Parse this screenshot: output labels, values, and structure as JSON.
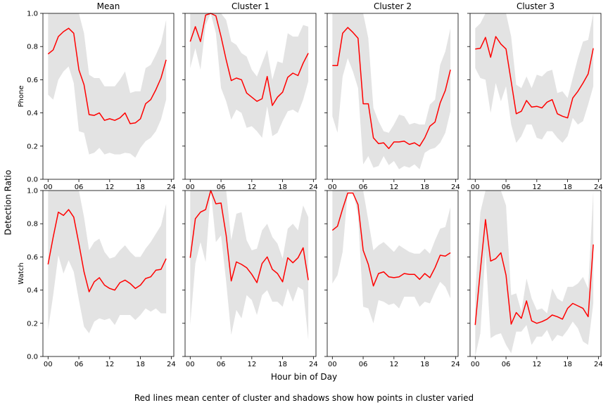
{
  "figure": {
    "supylabel": "Detection Ratio",
    "supxlabel": "Hour bin of Day",
    "caption": "Red lines mean center of cluster and shadows show how points in cluster varied"
  },
  "colors": {
    "line": "#ff0000",
    "band": "#e3e3e3",
    "axis": "#000000"
  },
  "chart_data": [
    {
      "type": "line",
      "title": "Mean",
      "ylabel": "Phone",
      "ylim": [
        0,
        1
      ],
      "xlim": [
        -1,
        24.5
      ],
      "x_ticks": [
        "00",
        "06",
        "12",
        "18",
        "24"
      ],
      "y_ticks": [
        "0.0",
        "0.2",
        "0.4",
        "0.6",
        "0.8",
        "1.0"
      ],
      "series": [
        {
          "x": [
            0,
            1,
            2,
            3,
            4,
            5,
            6,
            7,
            8,
            9,
            10,
            11,
            12,
            13,
            14,
            15,
            16,
            17,
            18,
            19,
            20,
            21,
            22,
            23
          ],
          "values": [
            0.755,
            0.78,
            0.86,
            0.89,
            0.91,
            0.88,
            0.66,
            0.57,
            0.39,
            0.385,
            0.4,
            0.355,
            0.365,
            0.355,
            0.37,
            0.4,
            0.335,
            0.34,
            0.365,
            0.455,
            0.48,
            0.54,
            0.61,
            0.72
          ],
          "lower": [
            0.51,
            0.48,
            0.6,
            0.65,
            0.68,
            0.58,
            0.29,
            0.28,
            0.15,
            0.16,
            0.19,
            0.15,
            0.16,
            0.15,
            0.15,
            0.16,
            0.155,
            0.13,
            0.19,
            0.23,
            0.25,
            0.29,
            0.36,
            0.48
          ],
          "upper": [
            1.0,
            1.0,
            1.0,
            1.0,
            1.0,
            1.0,
            1.0,
            0.88,
            0.63,
            0.61,
            0.61,
            0.56,
            0.56,
            0.56,
            0.6,
            0.65,
            0.52,
            0.53,
            0.53,
            0.67,
            0.69,
            0.75,
            0.82,
            0.96
          ]
        }
      ]
    },
    {
      "type": "line",
      "title": "Cluster 1",
      "ylabel": "",
      "ylim": [
        0,
        1
      ],
      "xlim": [
        -1,
        24.5
      ],
      "x_ticks": [
        "00",
        "06",
        "12",
        "18",
        "24"
      ],
      "y_ticks": [
        "0.0",
        "0.2",
        "0.4",
        "0.6",
        "0.8",
        "1.0"
      ],
      "series": [
        {
          "x": [
            0,
            1,
            2,
            3,
            4,
            5,
            6,
            7,
            8,
            9,
            10,
            11,
            12,
            13,
            14,
            15,
            16,
            17,
            18,
            19,
            20,
            21,
            22,
            23
          ],
          "values": [
            0.83,
            0.92,
            0.83,
            0.99,
            1.0,
            0.985,
            0.86,
            0.72,
            0.595,
            0.61,
            0.6,
            0.52,
            0.495,
            0.47,
            0.485,
            0.62,
            0.445,
            0.495,
            0.525,
            0.615,
            0.64,
            0.625,
            0.7,
            0.76
          ],
          "lower": [
            0.67,
            0.79,
            0.66,
            0.93,
            1.0,
            0.88,
            0.55,
            0.47,
            0.36,
            0.42,
            0.4,
            0.31,
            0.32,
            0.29,
            0.25,
            0.44,
            0.26,
            0.28,
            0.35,
            0.41,
            0.42,
            0.4,
            0.48,
            0.59
          ],
          "upper": [
            1.0,
            1.0,
            1.0,
            1.0,
            1.0,
            1.0,
            1.0,
            0.96,
            0.83,
            0.81,
            0.76,
            0.74,
            0.66,
            0.62,
            0.7,
            0.78,
            0.6,
            0.71,
            0.7,
            0.88,
            0.86,
            0.86,
            0.93,
            0.92
          ]
        }
      ]
    },
    {
      "type": "line",
      "title": "Cluster 2",
      "ylabel": "",
      "ylim": [
        0,
        1
      ],
      "xlim": [
        -1,
        24.5
      ],
      "x_ticks": [
        "00",
        "06",
        "12",
        "18",
        "24"
      ],
      "y_ticks": [
        "0.0",
        "0.2",
        "0.4",
        "0.6",
        "0.8",
        "1.0"
      ],
      "series": [
        {
          "x": [
            0,
            1,
            2,
            3,
            4,
            5,
            6,
            7,
            8,
            9,
            10,
            11,
            12,
            13,
            14,
            15,
            16,
            17,
            18,
            19,
            20,
            21,
            22,
            23
          ],
          "values": [
            0.685,
            0.685,
            0.88,
            0.915,
            0.885,
            0.85,
            0.455,
            0.455,
            0.25,
            0.215,
            0.22,
            0.185,
            0.225,
            0.225,
            0.23,
            0.21,
            0.22,
            0.2,
            0.25,
            0.32,
            0.345,
            0.46,
            0.535,
            0.66
          ],
          "lower": [
            0.38,
            0.28,
            0.62,
            0.73,
            0.65,
            0.55,
            0.09,
            0.14,
            0.07,
            0.08,
            0.14,
            0.085,
            0.11,
            0.06,
            0.08,
            0.07,
            0.09,
            0.06,
            0.16,
            0.18,
            0.19,
            0.22,
            0.28,
            0.41
          ],
          "upper": [
            1.0,
            1.0,
            1.0,
            1.0,
            1.0,
            1.0,
            1.0,
            0.85,
            0.43,
            0.35,
            0.29,
            0.28,
            0.33,
            0.39,
            0.38,
            0.33,
            0.34,
            0.33,
            0.33,
            0.45,
            0.48,
            0.69,
            0.77,
            0.91
          ]
        }
      ]
    },
    {
      "type": "line",
      "title": "Cluster 3",
      "ylabel": "",
      "ylim": [
        0,
        1
      ],
      "xlim": [
        -1,
        24.5
      ],
      "x_ticks": [
        "00",
        "06",
        "12",
        "18",
        "24"
      ],
      "y_ticks": [
        "0.0",
        "0.2",
        "0.4",
        "0.6",
        "0.8",
        "1.0"
      ],
      "series": [
        {
          "x": [
            0,
            1,
            2,
            3,
            4,
            5,
            6,
            7,
            8,
            9,
            10,
            11,
            12,
            13,
            14,
            15,
            16,
            17,
            18,
            19,
            20,
            21,
            22,
            23
          ],
          "values": [
            0.785,
            0.79,
            0.855,
            0.735,
            0.86,
            0.815,
            0.785,
            0.59,
            0.395,
            0.41,
            0.475,
            0.435,
            0.44,
            0.43,
            0.465,
            0.48,
            0.395,
            0.38,
            0.37,
            0.49,
            0.53,
            0.58,
            0.635,
            0.79
          ],
          "lower": [
            0.67,
            0.61,
            0.6,
            0.4,
            0.58,
            0.47,
            0.56,
            0.33,
            0.22,
            0.26,
            0.33,
            0.33,
            0.25,
            0.24,
            0.29,
            0.29,
            0.25,
            0.22,
            0.26,
            0.37,
            0.33,
            0.35,
            0.45,
            0.56
          ],
          "upper": [
            0.91,
            0.94,
            1.0,
            1.0,
            1.0,
            1.0,
            1.0,
            0.86,
            0.57,
            0.55,
            0.62,
            0.55,
            0.63,
            0.62,
            0.65,
            0.66,
            0.52,
            0.53,
            0.49,
            0.61,
            0.73,
            0.83,
            0.84,
            1.0
          ]
        }
      ]
    },
    {
      "type": "line",
      "title": "",
      "ylabel": "Watch",
      "ylim": [
        0,
        1
      ],
      "xlim": [
        -1,
        24.5
      ],
      "x_ticks": [
        "00",
        "06",
        "12",
        "18",
        "24"
      ],
      "y_ticks": [
        "0.0",
        "0.2",
        "0.4",
        "0.6",
        "0.8",
        "1.0"
      ],
      "series": [
        {
          "x": [
            0,
            1,
            2,
            3,
            4,
            5,
            6,
            7,
            8,
            9,
            10,
            11,
            12,
            13,
            14,
            15,
            16,
            17,
            18,
            19,
            20,
            21,
            22,
            23
          ],
          "values": [
            0.555,
            0.72,
            0.87,
            0.85,
            0.885,
            0.84,
            0.68,
            0.51,
            0.39,
            0.45,
            0.475,
            0.43,
            0.41,
            0.4,
            0.445,
            0.46,
            0.44,
            0.41,
            0.43,
            0.47,
            0.48,
            0.52,
            0.525,
            0.59
          ],
          "lower": [
            0.16,
            0.37,
            0.61,
            0.5,
            0.58,
            0.51,
            0.34,
            0.18,
            0.14,
            0.21,
            0.23,
            0.22,
            0.23,
            0.19,
            0.25,
            0.25,
            0.25,
            0.22,
            0.25,
            0.29,
            0.27,
            0.29,
            0.26,
            0.26
          ],
          "upper": [
            1.0,
            1.0,
            1.0,
            1.0,
            1.0,
            1.0,
            1.0,
            0.84,
            0.64,
            0.69,
            0.71,
            0.63,
            0.59,
            0.6,
            0.64,
            0.67,
            0.63,
            0.6,
            0.6,
            0.65,
            0.69,
            0.74,
            0.79,
            0.92
          ]
        }
      ]
    },
    {
      "type": "line",
      "title": "",
      "ylabel": "",
      "ylim": [
        0,
        1
      ],
      "xlim": [
        -1,
        24.5
      ],
      "x_ticks": [
        "00",
        "06",
        "12",
        "18",
        "24"
      ],
      "y_ticks": [
        "0.0",
        "0.2",
        "0.4",
        "0.6",
        "0.8",
        "1.0"
      ],
      "series": [
        {
          "x": [
            0,
            1,
            2,
            3,
            4,
            5,
            6,
            7,
            8,
            9,
            10,
            11,
            12,
            13,
            14,
            15,
            16,
            17,
            18,
            19,
            20,
            21,
            22,
            23
          ],
          "values": [
            0.595,
            0.83,
            0.87,
            0.885,
            1.0,
            0.92,
            0.925,
            0.73,
            0.455,
            0.57,
            0.555,
            0.535,
            0.495,
            0.445,
            0.56,
            0.6,
            0.525,
            0.5,
            0.45,
            0.595,
            0.565,
            0.595,
            0.655,
            0.46
          ],
          "lower": [
            0.19,
            0.56,
            0.69,
            0.57,
            1.0,
            0.69,
            0.73,
            0.45,
            0.13,
            0.28,
            0.23,
            0.37,
            0.34,
            0.25,
            0.37,
            0.4,
            0.33,
            0.33,
            0.3,
            0.41,
            0.33,
            0.42,
            0.4,
            0.1
          ],
          "upper": [
            1.0,
            1.0,
            1.0,
            1.0,
            1.0,
            1.0,
            1.0,
            1.0,
            0.7,
            0.86,
            0.87,
            0.7,
            0.64,
            0.65,
            0.76,
            0.8,
            0.72,
            0.68,
            0.59,
            0.77,
            0.8,
            0.76,
            0.91,
            0.84
          ]
        }
      ]
    },
    {
      "type": "line",
      "title": "",
      "ylabel": "",
      "ylim": [
        0,
        1
      ],
      "xlim": [
        -1,
        24.5
      ],
      "x_ticks": [
        "00",
        "06",
        "12",
        "18",
        "24"
      ],
      "y_ticks": [
        "0.0",
        "0.2",
        "0.4",
        "0.6",
        "0.8",
        "1.0"
      ],
      "series": [
        {
          "x": [
            0,
            1,
            2,
            3,
            4,
            5,
            6,
            7,
            8,
            9,
            10,
            11,
            12,
            13,
            14,
            15,
            16,
            17,
            18,
            19,
            20,
            21,
            22,
            23
          ],
          "values": [
            0.76,
            0.785,
            0.89,
            0.985,
            0.985,
            0.915,
            0.64,
            0.555,
            0.425,
            0.5,
            0.51,
            0.48,
            0.475,
            0.48,
            0.5,
            0.495,
            0.495,
            0.465,
            0.5,
            0.475,
            0.535,
            0.61,
            0.605,
            0.625
          ],
          "lower": [
            0.44,
            0.49,
            0.63,
            1.0,
            1.0,
            0.85,
            0.3,
            0.29,
            0.2,
            0.34,
            0.33,
            0.31,
            0.32,
            0.29,
            0.36,
            0.36,
            0.36,
            0.3,
            0.33,
            0.32,
            0.39,
            0.45,
            0.42,
            0.35
          ],
          "upper": [
            1.0,
            1.0,
            1.0,
            1.0,
            1.0,
            1.0,
            1.0,
            0.82,
            0.64,
            0.67,
            0.69,
            0.66,
            0.63,
            0.67,
            0.65,
            0.63,
            0.62,
            0.62,
            0.65,
            0.62,
            0.7,
            0.77,
            0.78,
            0.9
          ]
        }
      ]
    },
    {
      "type": "line",
      "title": "",
      "ylabel": "",
      "ylim": [
        0,
        1
      ],
      "xlim": [
        -1,
        24.5
      ],
      "x_ticks": [
        "00",
        "06",
        "12",
        "18",
        "24"
      ],
      "y_ticks": [
        "0.0",
        "0.2",
        "0.4",
        "0.6",
        "0.8",
        "1.0"
      ],
      "series": [
        {
          "x": [
            0,
            1,
            2,
            3,
            4,
            5,
            6,
            7,
            8,
            9,
            10,
            11,
            12,
            13,
            14,
            15,
            16,
            17,
            18,
            19,
            20,
            21,
            22,
            23
          ],
          "values": [
            0.19,
            0.52,
            0.825,
            0.575,
            0.59,
            0.625,
            0.49,
            0.195,
            0.265,
            0.23,
            0.335,
            0.215,
            0.2,
            0.21,
            0.225,
            0.25,
            0.24,
            0.225,
            0.29,
            0.32,
            0.305,
            0.29,
            0.24,
            0.675
          ],
          "lower": [
            0.0,
            0.14,
            0.64,
            0.11,
            0.13,
            0.14,
            0.07,
            0.02,
            0.15,
            0.15,
            0.19,
            0.07,
            0.12,
            0.12,
            0.16,
            0.09,
            0.13,
            0.12,
            0.16,
            0.21,
            0.17,
            0.09,
            0.07,
            0.32
          ],
          "upper": [
            0.38,
            0.87,
            1.0,
            1.0,
            1.0,
            1.0,
            0.91,
            0.37,
            0.38,
            0.27,
            0.47,
            0.35,
            0.28,
            0.29,
            0.26,
            0.41,
            0.35,
            0.33,
            0.42,
            0.42,
            0.44,
            0.48,
            0.41,
            1.0
          ]
        }
      ]
    }
  ]
}
